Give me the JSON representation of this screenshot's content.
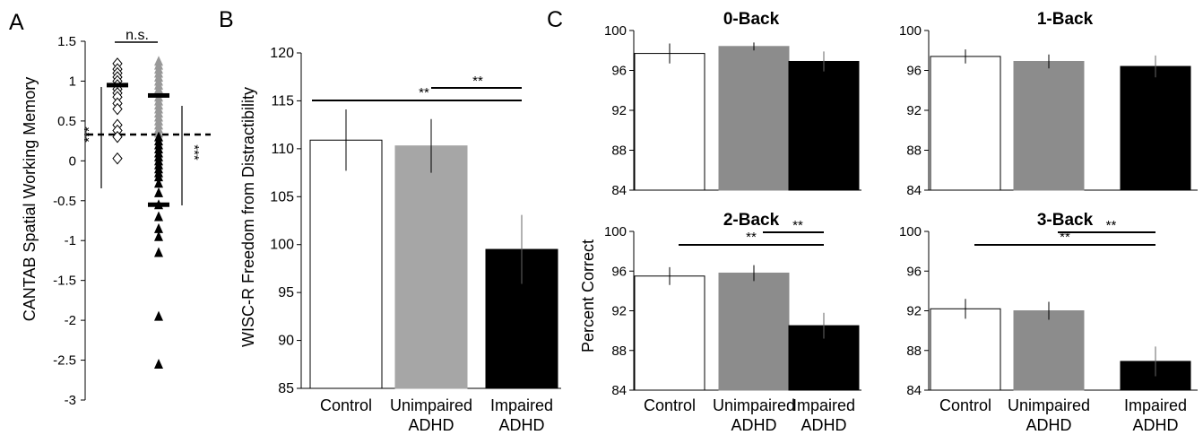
{
  "chart_data": [
    {
      "panel_label": "A",
      "type": "scatter",
      "title": "",
      "xlabel": "",
      "ylabel": "CANTAB Spatial Working Memory",
      "ylim": [
        -3,
        1.5
      ],
      "yticks": [
        "1.5",
        "1",
        "0.5",
        "0",
        "-0.5",
        "-1",
        "-1.5",
        "-2",
        "-2.5",
        "-3"
      ],
      "reference_line": 0.33,
      "colors": {
        "unimpaired": "#999999",
        "impaired": "#000000",
        "control": "#ffffff"
      },
      "series": [
        {
          "marker": "diamond-open",
          "mean": 0.95,
          "values": [
            1.22,
            1.15,
            1.1,
            1.05,
            1.0,
            0.95,
            0.9,
            0.85,
            0.8,
            0.72,
            0.65,
            0.45,
            0.38,
            0.3,
            0.03
          ]
        },
        {
          "marker": "triangle-gray",
          "mean": 0.82,
          "values": [
            1.25,
            1.2,
            1.15,
            1.1,
            1.05,
            1.0,
            0.95,
            0.9,
            0.85,
            0.8,
            0.75,
            0.7,
            0.65,
            0.6,
            0.55,
            0.5,
            0.45,
            0.4,
            0.35
          ]
        },
        {
          "marker": "triangle-black",
          "mean": -0.55,
          "values": [
            0.3,
            0.25,
            0.2,
            0.15,
            0.1,
            0.05,
            0.0,
            -0.05,
            -0.1,
            -0.15,
            -0.2,
            -0.28,
            -0.4,
            -0.55,
            -0.7,
            -0.85,
            -0.95,
            -1.15,
            -1.95,
            -2.55
          ]
        }
      ],
      "annotations": [
        {
          "text": "n.s."
        },
        {
          "text": "***"
        },
        {
          "text": "***"
        }
      ]
    },
    {
      "panel_label": "B",
      "type": "bar",
      "title": "",
      "xlabel": "",
      "ylabel": "WISC-R Freedom from Distractibility",
      "ylim": [
        85,
        120
      ],
      "yticks": [
        "120",
        "115",
        "110",
        "105",
        "100",
        "95",
        "90",
        "85"
      ],
      "categories": [
        [
          "Control"
        ],
        [
          "Unimpaired",
          "ADHD"
        ],
        [
          "Impaired",
          "ADHD"
        ]
      ],
      "values": [
        110.9,
        110.3,
        99.5
      ],
      "errors": [
        3.2,
        2.8,
        3.6
      ],
      "colors": [
        "#ffffff",
        "#a6a6a6",
        "#000000"
      ],
      "annotations": [
        {
          "text": "**"
        },
        {
          "text": "**"
        }
      ]
    },
    {
      "panel_label": "C",
      "type": "bar",
      "ylabel": "Percent Correct",
      "ylim": [
        84,
        100
      ],
      "yticks": [
        "100",
        "96",
        "92",
        "88",
        "84"
      ],
      "categories": [
        [
          "Control"
        ],
        [
          "Unimpaired",
          "ADHD"
        ],
        [
          "Impaired",
          "ADHD"
        ]
      ],
      "colors": [
        "#ffffff",
        "#8c8c8c",
        "#000000"
      ],
      "subplots": [
        {
          "title": "0-Back",
          "values": [
            97.7,
            98.4,
            96.9
          ],
          "errors": [
            1.0,
            0.4,
            1.0
          ],
          "annotations": []
        },
        {
          "title": "1-Back",
          "values": [
            97.4,
            96.9,
            96.4
          ],
          "errors": [
            0.7,
            0.7,
            1.1
          ],
          "annotations": []
        },
        {
          "title": "2-Back",
          "values": [
            95.5,
            95.8,
            90.5
          ],
          "errors": [
            0.9,
            0.8,
            1.3
          ],
          "annotations": [
            {
              "text": "**"
            },
            {
              "text": "**"
            }
          ]
        },
        {
          "title": "3-Back",
          "values": [
            92.2,
            92.0,
            86.9
          ],
          "errors": [
            1.0,
            0.9,
            1.5
          ],
          "annotations": [
            {
              "text": "**"
            },
            {
              "text": "**"
            }
          ]
        }
      ]
    }
  ]
}
